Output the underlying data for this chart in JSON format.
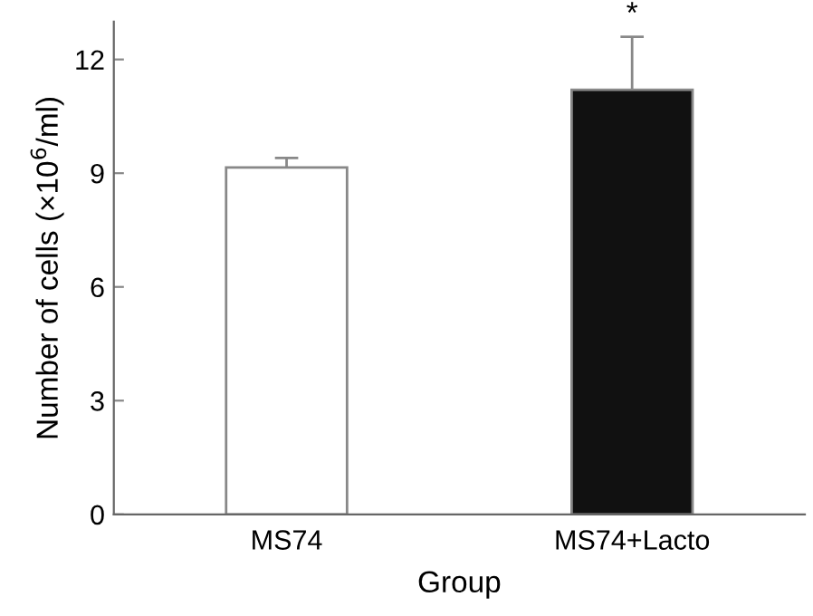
{
  "chart_data": {
    "type": "bar",
    "xlabel": "Group",
    "ylabel": "Number of cells (×10$^{6}$/ml)",
    "categories": [
      "MS74",
      "MS74+Lacto"
    ],
    "values": [
      9.15,
      11.2
    ],
    "colors": [
      "#ffffff",
      "#111111"
    ],
    "errors": [
      [
        9.15,
        9.4
      ],
      [
        11.2,
        12.6
      ]
    ],
    "annotations": [
      {
        "text": "*",
        "x": "MS74+Lacto",
        "y": 12.6
      }
    ],
    "ylim": [
      0,
      13
    ],
    "yticks": [
      0,
      3,
      6,
      9,
      12
    ],
    "grid": false,
    "legend": false
  }
}
